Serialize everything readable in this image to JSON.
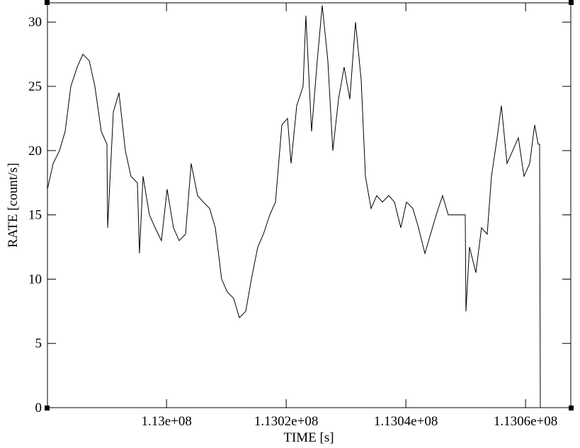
{
  "chart_data": {
    "type": "line",
    "xlabel": "TIME [s]",
    "ylabel": "RATE [count/s]",
    "color": "#000000",
    "x": [
      112980100,
      112981050,
      112982110,
      112983060,
      112984010,
      112985070,
      112986020,
      112987080,
      112988030,
      112989090,
      112990040,
      112990160,
      112991110,
      112992050,
      112993120,
      112994060,
      112995130,
      112995480,
      112996080,
      112997140,
      112998090,
      112999150,
      113000100,
      113001160,
      113002110,
      113003180,
      113004120,
      113005190,
      113006140,
      113007200,
      113008150,
      113009210,
      113010160,
      113011220,
      113012170,
      113013240,
      113014180,
      113015250,
      113016190,
      113017260,
      113018210,
      113019270,
      113020220,
      113020810,
      113021760,
      113022820,
      113023290,
      113024240,
      113025190,
      113026020,
      113026960,
      113027790,
      113028740,
      113029680,
      113030630,
      113031580,
      113032530,
      113033240,
      113034180,
      113035130,
      113036080,
      113037140,
      113038090,
      113039150,
      113040100,
      113041160,
      113042110,
      113043180,
      113044120,
      113045070,
      113046130,
      113047080,
      113048030,
      113049090,
      113049920,
      113050040,
      113050630,
      113051700,
      113052640,
      113053590,
      113054300,
      113055250,
      113055960,
      113056900,
      113057850,
      113058800,
      113059740,
      113060690,
      113061520,
      113062110,
      113062350,
      113062470
    ],
    "values": [
      17,
      19,
      20,
      21.5,
      25,
      26.5,
      27.5,
      27,
      25,
      21.5,
      20.5,
      14,
      23,
      24.5,
      20,
      18,
      17.5,
      12,
      18,
      15,
      14,
      13,
      17,
      14,
      13,
      13.5,
      19,
      16.5,
      16,
      15.5,
      14,
      10,
      9,
      8.5,
      7,
      7.5,
      10,
      12.5,
      13.5,
      15,
      16,
      22,
      22.5,
      19,
      23.5,
      25,
      30.5,
      21.5,
      27,
      31.3,
      27,
      20,
      24,
      26.5,
      24,
      30,
      25.5,
      18,
      15.5,
      16.5,
      16,
      16.5,
      16,
      14,
      16,
      15.5,
      14,
      12,
      13.5,
      15,
      16.5,
      15,
      15,
      15,
      15,
      7.5,
      12.5,
      10.5,
      14,
      13.5,
      18,
      21,
      23.5,
      19,
      20,
      21,
      18,
      19,
      22,
      20.5,
      20.5,
      0
    ],
    "xlim": [
      112980100,
      113067560
    ],
    "ylim": [
      0,
      31.5
    ],
    "xticks": [
      {
        "value": 113000000,
        "label": "1.13e+08"
      },
      {
        "value": 113020000,
        "label": "1.1302e+08"
      },
      {
        "value": 113040000,
        "label": "1.1304e+08"
      },
      {
        "value": 113060000,
        "label": "1.1306e+08"
      }
    ],
    "yticks": [
      0,
      5,
      10,
      15,
      20,
      25,
      30
    ]
  }
}
